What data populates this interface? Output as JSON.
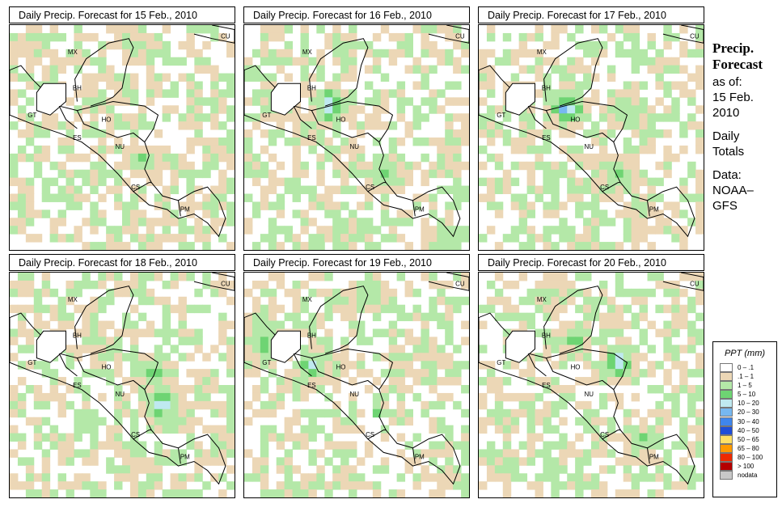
{
  "panels": [
    {
      "title": "Daily Precip. Forecast for  15 Feb., 2010",
      "seed": 11,
      "blobs": [
        [
          0.55,
          0.08,
          0.1,
          2,
          0.8
        ],
        [
          0.58,
          0.6,
          0.08,
          3,
          0.9
        ],
        [
          0.1,
          0.06,
          0.06,
          2,
          0.8
        ]
      ]
    },
    {
      "title": "Daily Precip. Forecast for  16 Feb., 2010",
      "seed": 23,
      "blobs": [
        [
          0.38,
          0.36,
          0.11,
          4,
          1.0
        ],
        [
          0.17,
          0.36,
          0.09,
          3,
          0.9
        ],
        [
          0.62,
          0.66,
          0.1,
          3,
          0.9
        ],
        [
          0.9,
          0.95,
          0.08,
          3,
          0.8
        ],
        [
          0.45,
          0.1,
          0.08,
          2,
          0.8
        ]
      ]
    },
    {
      "title": "Daily Precip. Forecast for  17 Feb., 2010",
      "seed": 37,
      "blobs": [
        [
          0.36,
          0.37,
          0.03,
          9,
          1.0
        ],
        [
          0.4,
          0.37,
          0.11,
          4,
          0.9
        ],
        [
          0.65,
          0.38,
          0.1,
          3,
          0.9
        ],
        [
          0.62,
          0.66,
          0.1,
          3,
          0.9
        ],
        [
          0.72,
          0.82,
          0.07,
          3,
          0.8
        ]
      ]
    },
    {
      "title": "Daily Precip. Forecast for  18 Feb., 2010",
      "seed": 41,
      "blobs": [
        [
          0.68,
          0.58,
          0.11,
          4,
          1.0
        ],
        [
          0.65,
          0.44,
          0.1,
          3,
          0.9
        ],
        [
          0.38,
          0.3,
          0.08,
          3,
          0.8
        ],
        [
          0.55,
          0.8,
          0.06,
          3,
          0.8
        ]
      ]
    },
    {
      "title": "Daily Precip. Forecast for  19 Feb., 2010",
      "seed": 53,
      "blobs": [
        [
          0.08,
          0.3,
          0.14,
          3,
          0.9
        ],
        [
          0.3,
          0.42,
          0.08,
          4,
          1.0
        ],
        [
          0.6,
          0.61,
          0.04,
          5,
          1.0
        ],
        [
          0.55,
          0.1,
          0.1,
          3,
          0.8
        ]
      ]
    },
    {
      "title": "Daily Precip. Forecast for  20 Feb., 2010",
      "seed": 67,
      "blobs": [
        [
          0.62,
          0.4,
          0.1,
          4,
          1.0
        ],
        [
          0.42,
          0.3,
          0.08,
          3,
          0.9
        ],
        [
          0.72,
          0.75,
          0.09,
          3,
          0.9
        ],
        [
          0.33,
          0.1,
          0.1,
          2,
          0.8
        ]
      ]
    }
  ],
  "map_labels": [
    "MX",
    "BH",
    "GT",
    "HO",
    "ES",
    "NU",
    "CS",
    "PM",
    "CU"
  ],
  "side": {
    "title1": "Precip.",
    "title2": "Forecast",
    "asof": "as of:",
    "date1": "15 Feb.",
    "date2": "2010",
    "daily1": "Daily",
    "daily2": "Totals",
    "data1": "Data:",
    "data2": "NOAA–",
    "data3": "GFS"
  },
  "legend": {
    "title": "PPT (mm)",
    "items": [
      {
        "label": "0 – .1",
        "color": "#ffffff"
      },
      {
        "label": ".1 – 1",
        "color": "#ecd7b6"
      },
      {
        "label": "1 – 5",
        "color": "#b4e8a8"
      },
      {
        "label": "5 – 10",
        "color": "#6ed473"
      },
      {
        "label": "10 – 20",
        "color": "#bfe9f0"
      },
      {
        "label": "20 – 30",
        "color": "#77b8f0"
      },
      {
        "label": "30 – 40",
        "color": "#3f86ec"
      },
      {
        "label": "40 – 50",
        "color": "#1f4ed8"
      },
      {
        "label": "50 – 65",
        "color": "#ffe066"
      },
      {
        "label": "65 – 80",
        "color": "#ff9a00"
      },
      {
        "label": "80 – 100",
        "color": "#ee2a00"
      },
      {
        "label": "> 100",
        "color": "#b40000"
      },
      {
        "label": "nodata",
        "color": "#c8c8c8"
      }
    ]
  }
}
